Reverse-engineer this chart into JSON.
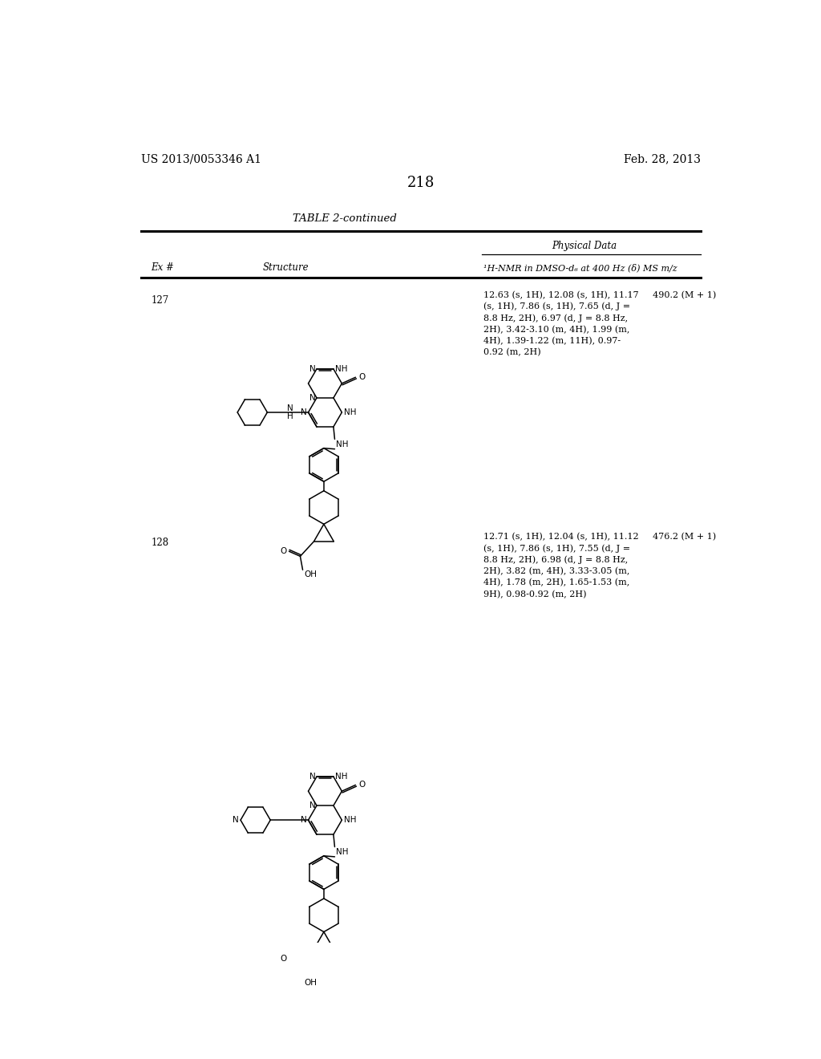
{
  "background_color": "#ffffff",
  "page_number": "218",
  "left_header": "US 2013/0053346 A1",
  "right_header": "Feb. 28, 2013",
  "table_title": "TABLE 2-continued",
  "physical_data_label": "Physical Data",
  "ex_header": "Ex #",
  "struct_header": "Structure",
  "nmr_header": "¹H-NMR in DMSO-d₆ at 400 Hz (δ) MS m/z",
  "entries": [
    {
      "ex_num": "127",
      "nmr_text": "12.63 (s, 1H), 12.08 (s, 1H), 11.17     490.2 (M + 1)\n(s, 1H), 7.86 (s, 1H), 7.65 (d, J =\n8.8 Hz, 2H), 6.97 (d, J = 8.8 Hz,\n2H), 3.42-3.10 (m, 4H), 1.99 (m,\n4H), 1.39-1.22 (m, 11H), 0.97-\n0.92 (m, 2H)"
    },
    {
      "ex_num": "128",
      "nmr_text": "12.71 (s, 1H), 12.04 (s, 1H), 11.12     476.2 (M + 1)\n(s, 1H), 7.86 (s, 1H), 7.55 (d, J =\n8.8 Hz, 2H), 6.98 (d, J = 8.8 Hz,\n2H), 3.82 (m, 4H), 3.33-3.05 (m,\n4H), 1.78 (m, 2H), 1.65-1.53 (m,\n9H), 0.98-0.92 (m, 2H)"
    }
  ]
}
